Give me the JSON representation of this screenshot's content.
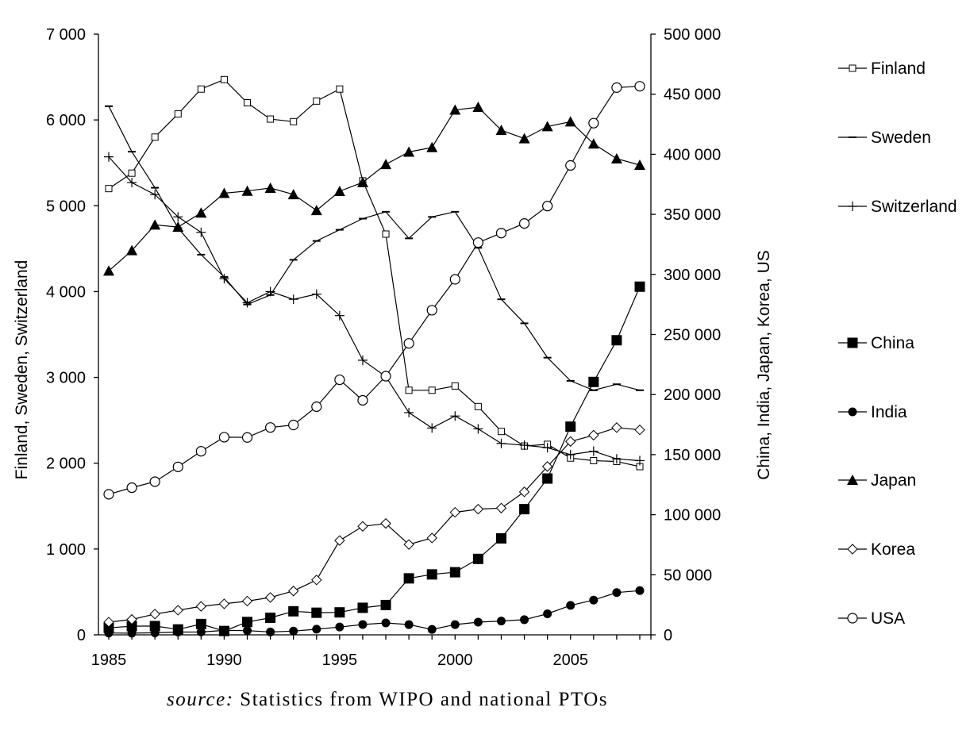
{
  "chart_data": {
    "type": "line",
    "x": [
      1985,
      1986,
      1987,
      1988,
      1989,
      1990,
      1991,
      1992,
      1993,
      1994,
      1995,
      1996,
      1997,
      1998,
      1999,
      2000,
      2001,
      2002,
      2003,
      2004,
      2005,
      2006,
      2007,
      2008
    ],
    "x_ticks": [
      "1985",
      "1990",
      "1995",
      "2000",
      "2005"
    ],
    "x_tick_values": [
      1985,
      1990,
      1995,
      2000,
      2005
    ],
    "xlim": [
      1985,
      2008.5
    ],
    "y_left": {
      "label": "Finland, Sweden, Switzerland",
      "lim": [
        0,
        7000
      ],
      "ticks": [
        "0",
        "1 000",
        "2 000",
        "3 000",
        "4 000",
        "5 000",
        "6 000",
        "7 000"
      ],
      "tick_values": [
        0,
        1000,
        2000,
        3000,
        4000,
        5000,
        6000,
        7000
      ]
    },
    "y_right": {
      "label": "China, India, Japan, Korea, US",
      "lim": [
        0,
        500000
      ],
      "ticks": [
        "0",
        "50 000",
        "100 000",
        "150 000",
        "200 000",
        "250 000",
        "300 000",
        "350 000",
        "400 000",
        "450 000",
        "500 000"
      ],
      "tick_values": [
        0,
        50000,
        100000,
        150000,
        200000,
        250000,
        300000,
        350000,
        400000,
        450000,
        500000
      ]
    },
    "series": [
      {
        "name": "Finland",
        "axis": "left",
        "marker": "square-open",
        "values": [
          5200,
          5380,
          5800,
          6070,
          6360,
          6470,
          6200,
          6010,
          5980,
          6220,
          6360,
          5290,
          4670,
          2850,
          2850,
          2900,
          2660,
          2370,
          2200,
          2220,
          2060,
          2030,
          2020,
          1960
        ]
      },
      {
        "name": "Sweden",
        "axis": "left",
        "marker": "dash",
        "values": [
          6160,
          5630,
          5210,
          4740,
          4430,
          4170,
          3850,
          3960,
          4370,
          4590,
          4720,
          4850,
          4930,
          4620,
          4870,
          4930,
          4510,
          3910,
          3630,
          3230,
          2960,
          2850,
          2920,
          2850
        ]
      },
      {
        "name": "Switzerland",
        "axis": "left",
        "marker": "plus",
        "values": [
          5570,
          5270,
          5130,
          4870,
          4690,
          4150,
          3870,
          4000,
          3910,
          3970,
          3720,
          3200,
          3010,
          2590,
          2410,
          2550,
          2400,
          2230,
          2210,
          2180,
          2100,
          2140,
          2050,
          2030
        ]
      },
      {
        "name": "China",
        "axis": "right",
        "marker": "square-filled",
        "values": [
          5800,
          7200,
          7300,
          4500,
          9000,
          3200,
          10700,
          14200,
          19600,
          18400,
          18700,
          22500,
          24800,
          47000,
          50300,
          52100,
          63200,
          80300,
          104600,
          130100,
          173300,
          210500,
          245200,
          289800
        ]
      },
      {
        "name": "India",
        "axis": "right",
        "marker": "circle-filled",
        "values": [
          1500,
          1400,
          1700,
          2300,
          2400,
          3700,
          3500,
          2400,
          3100,
          4700,
          6500,
          8600,
          9900,
          8500,
          4500,
          8500,
          10600,
          11500,
          12600,
          17500,
          24500,
          28900,
          35200,
          36800
        ]
      },
      {
        "name": "Japan",
        "axis": "right",
        "marker": "triangle-filled",
        "values": [
          302900,
          319900,
          341200,
          339400,
          351200,
          367600,
          369400,
          371900,
          366500,
          353300,
          369200,
          376600,
          391600,
          401900,
          405700,
          436900,
          439200,
          420000,
          413100,
          423100,
          427100,
          408700,
          396300,
          391000
        ]
      },
      {
        "name": "Korea",
        "axis": "right",
        "marker": "diamond-open",
        "values": [
          10600,
          12800,
          17300,
          20500,
          23700,
          25800,
          28100,
          31100,
          36500,
          45700,
          78500,
          90300,
          92700,
          75200,
          80600,
          102000,
          104600,
          105500,
          119000,
          140100,
          160900,
          166200,
          172500,
          170600
        ]
      },
      {
        "name": "USA",
        "axis": "right",
        "marker": "circle-open",
        "values": [
          117000,
          122500,
          127500,
          139800,
          152800,
          164500,
          164300,
          172600,
          174700,
          189900,
          212300,
          195200,
          215300,
          242600,
          270200,
          295900,
          326500,
          334400,
          342400,
          356900,
          390700,
          425900,
          455500,
          456600
        ]
      }
    ],
    "legend_position": "right"
  },
  "source": {
    "label": "source:",
    "text": " Statistics from WIPO and national PTOs"
  }
}
